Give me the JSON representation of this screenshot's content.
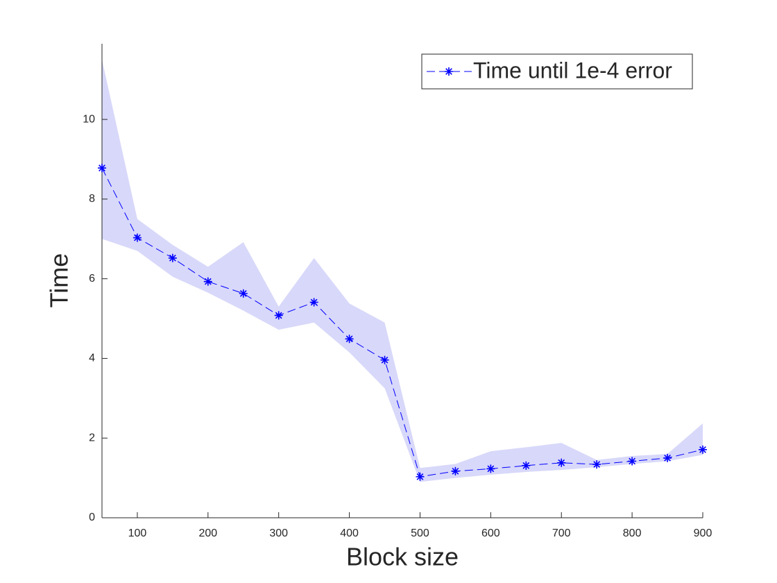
{
  "chart_data": {
    "type": "line",
    "xlabel": "Block size",
    "ylabel": "Time",
    "x": [
      50,
      100,
      150,
      200,
      250,
      300,
      350,
      400,
      450,
      500,
      550,
      600,
      650,
      700,
      750,
      800,
      850,
      900
    ],
    "series": [
      {
        "name": "Time until 1e-4 error",
        "color": "#0000ff",
        "values": [
          8.78,
          7.03,
          6.52,
          5.93,
          5.63,
          5.08,
          5.41,
          4.49,
          3.96,
          1.03,
          1.17,
          1.23,
          1.31,
          1.38,
          1.34,
          1.42,
          1.5,
          1.71
        ]
      }
    ],
    "band": {
      "color": "#d8d8fa",
      "upper": [
        11.5,
        7.5,
        6.85,
        6.3,
        6.92,
        5.3,
        6.52,
        5.38,
        4.9,
        1.25,
        1.35,
        1.67,
        1.77,
        1.88,
        1.45,
        1.55,
        1.6,
        2.37
      ],
      "lower": [
        7.0,
        6.7,
        6.05,
        5.65,
        5.2,
        4.72,
        4.9,
        4.15,
        3.25,
        0.9,
        1.0,
        1.08,
        1.15,
        1.2,
        1.27,
        1.35,
        1.42,
        1.58
      ]
    },
    "xlim": [
      50,
      900
    ],
    "ylim": [
      0,
      11.9
    ],
    "xticks": [
      100,
      200,
      300,
      400,
      500,
      600,
      700,
      800,
      900
    ],
    "yticks": [
      0,
      2,
      4,
      6,
      8,
      10
    ],
    "legend": "top-right"
  }
}
